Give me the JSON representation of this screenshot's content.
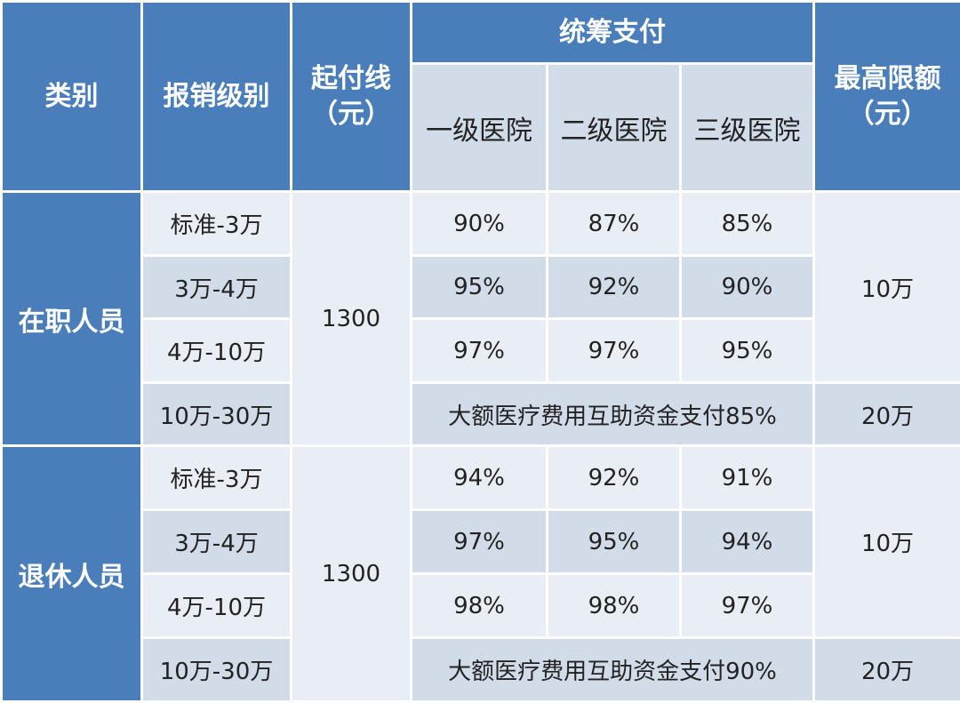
{
  "header": {
    "category": "类别",
    "level": "报销级别",
    "threshold_line1": "起付线",
    "threshold_line2": "（元）",
    "pooled_payment": "统筹支付",
    "hospital_1": "一级医院",
    "hospital_2": "二级医院",
    "hospital_3": "三级医院",
    "max_line1": "最高限额",
    "max_line2": "（元）"
  },
  "groups": [
    {
      "category": "在职人员",
      "threshold": "1300",
      "rows": [
        {
          "level": "标准-3万",
          "h1": "90%",
          "h2": "87%",
          "h3": "85%"
        },
        {
          "level": "3万-4万",
          "h1": "95%",
          "h2": "92%",
          "h3": "90%"
        },
        {
          "level": "4万-10万",
          "h1": "97%",
          "h2": "97%",
          "h3": "95%"
        }
      ],
      "max_main": "10万",
      "big_level": "10万-30万",
      "big_payment": "大额医疗费用互助资金支付85%",
      "big_max": "20万"
    },
    {
      "category": "退休人员",
      "threshold": "1300",
      "rows": [
        {
          "level": "标准-3万",
          "h1": "94%",
          "h2": "92%",
          "h3": "91%"
        },
        {
          "level": "3万-4万",
          "h1": "97%",
          "h2": "95%",
          "h3": "94%"
        },
        {
          "level": "4万-10万",
          "h1": "98%",
          "h2": "98%",
          "h3": "97%"
        }
      ],
      "max_main": "10万",
      "big_level": "10万-30万",
      "big_payment": "大额医疗费用互助资金支付90%",
      "big_max": "20万"
    }
  ],
  "colors": {
    "header_blue": "#4a7ebb",
    "band_dark": "#d2dbe8",
    "band_light": "#e9edf4"
  }
}
